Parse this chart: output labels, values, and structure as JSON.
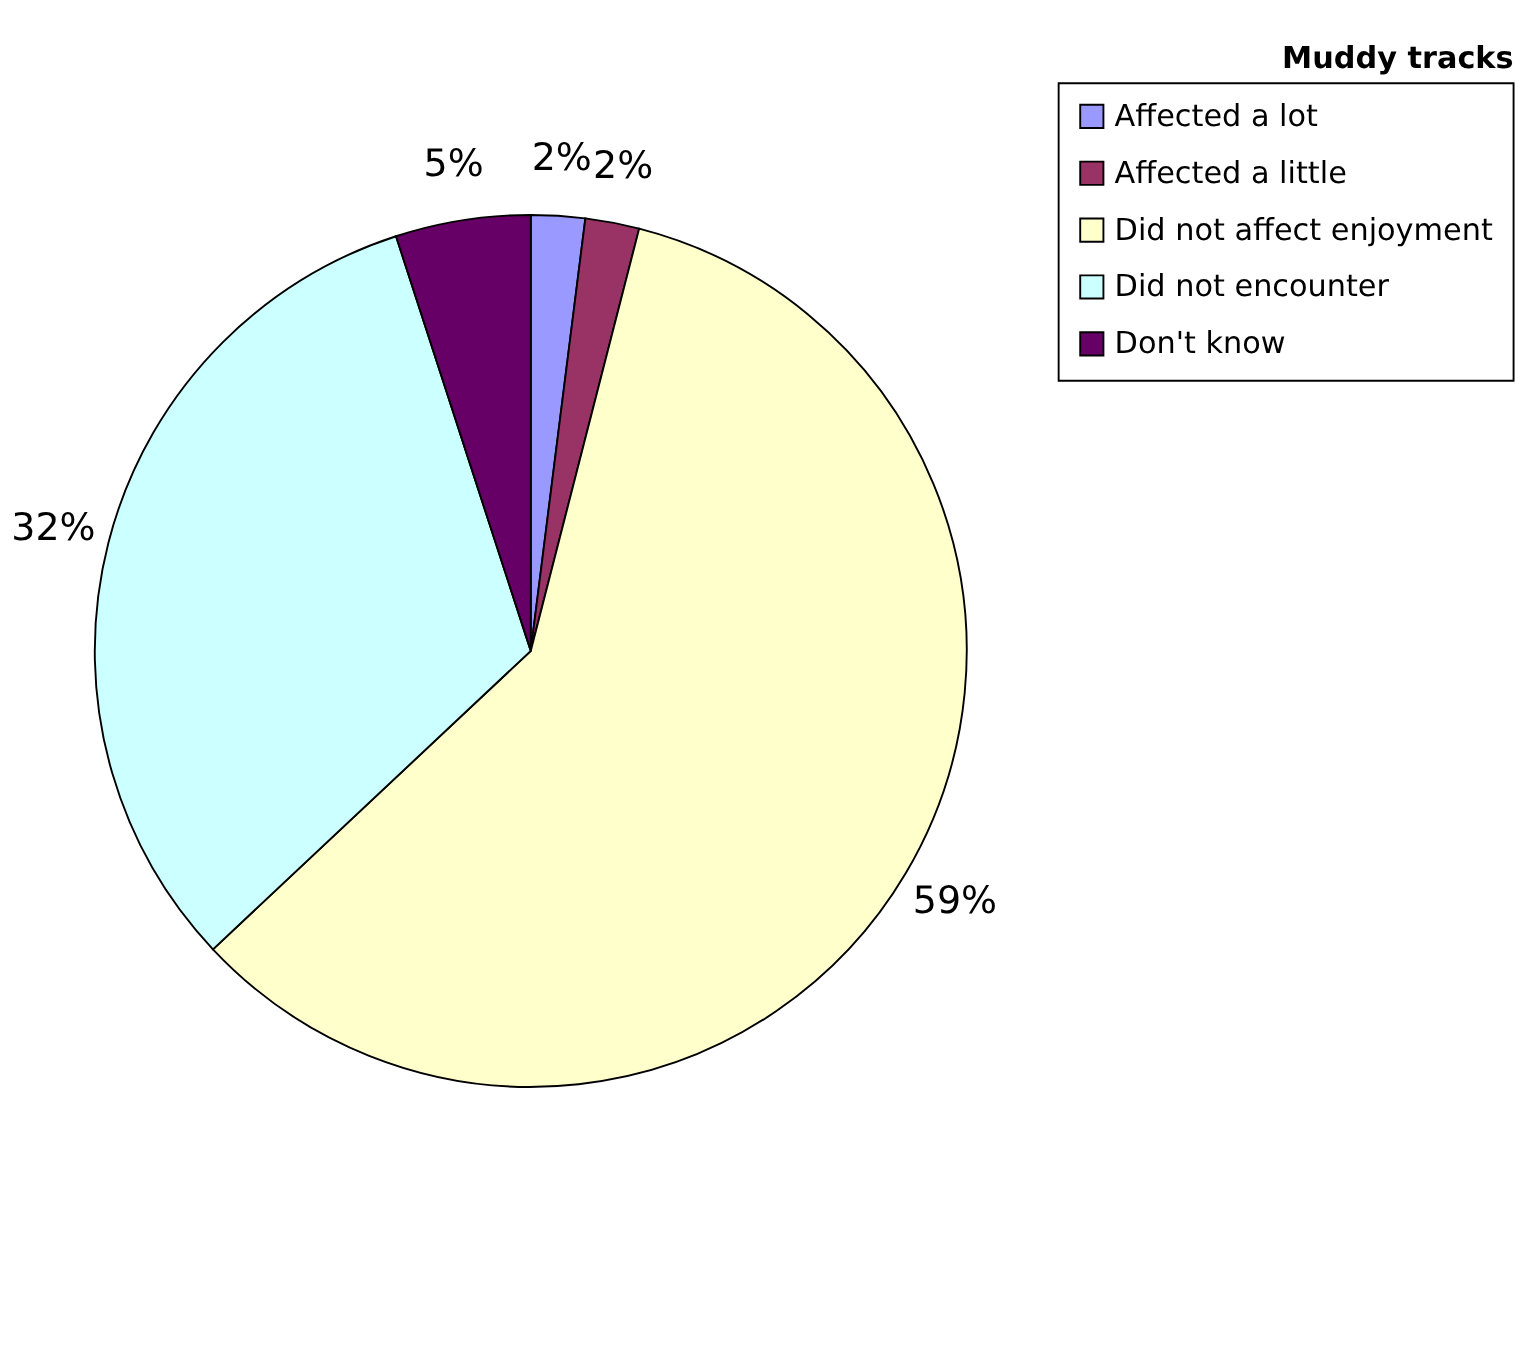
{
  "chart_data": {
    "type": "pie",
    "title": "Muddy tracks",
    "categories": [
      "Affected a lot",
      "Affected a little",
      "Did not affect enjoyment",
      "Did not encounter",
      "Don't know"
    ],
    "values": [
      2,
      2,
      59,
      32,
      5
    ],
    "colors": [
      "#9999ff",
      "#993366",
      "#ffffcc",
      "#ccffff",
      "#660066"
    ],
    "value_labels": [
      "2%",
      "2%",
      "59%",
      "32%",
      "5%"
    ],
    "legend": "right"
  }
}
